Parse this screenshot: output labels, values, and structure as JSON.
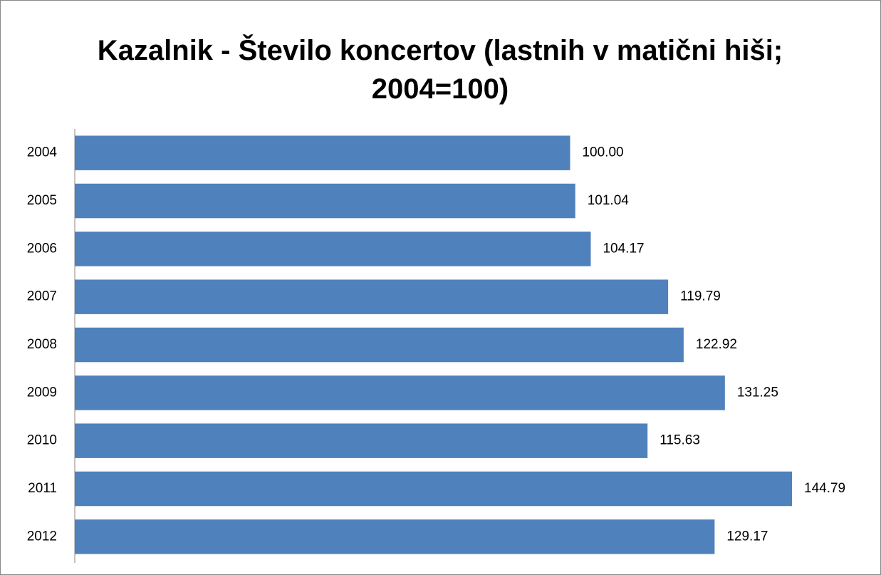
{
  "chart_data": {
    "type": "bar",
    "orientation": "horizontal",
    "title": "Kazalnik - Število koncertov (lastnih v matični hiši; 2004=100)",
    "categories": [
      "2004",
      "2005",
      "2006",
      "2007",
      "2008",
      "2009",
      "2010",
      "2011",
      "2012"
    ],
    "values": [
      100,
      101.04,
      104.17,
      119.79,
      122.92,
      131.25,
      115.63,
      144.79,
      129.17
    ],
    "value_labels": [
      "100.00",
      "101.04",
      "104.17",
      "119.79",
      "122.92",
      "131.25",
      "115.63",
      "144.79",
      "129.17"
    ],
    "color": "#4f81bd"
  }
}
